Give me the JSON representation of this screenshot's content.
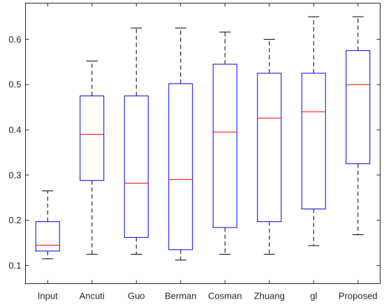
{
  "chart_data": {
    "type": "box",
    "title": "",
    "xlabel": "",
    "ylabel": "",
    "ylim": [
      0.06,
      0.68
    ],
    "yticks": [
      0.1,
      0.2,
      0.3,
      0.4,
      0.5,
      0.6
    ],
    "ytick_labels": [
      "0.1",
      "0.2",
      "0.3",
      "0.4",
      "0.5",
      "0.6"
    ],
    "grid": false,
    "categories": [
      "Input",
      "Ancuti",
      "Guo",
      "Berman",
      "Cosman",
      "Zhuang",
      "gl",
      "Proposed"
    ],
    "boxes": [
      {
        "min": 0.115,
        "q1": 0.132,
        "median": 0.145,
        "q3": 0.197,
        "max": 0.265
      },
      {
        "min": 0.125,
        "q1": 0.288,
        "median": 0.39,
        "q3": 0.475,
        "max": 0.552
      },
      {
        "min": 0.125,
        "q1": 0.162,
        "median": 0.282,
        "q3": 0.475,
        "max": 0.625
      },
      {
        "min": 0.112,
        "q1": 0.135,
        "median": 0.29,
        "q3": 0.502,
        "max": 0.625
      },
      {
        "min": 0.125,
        "q1": 0.184,
        "median": 0.395,
        "q3": 0.545,
        "max": 0.616
      },
      {
        "min": 0.125,
        "q1": 0.197,
        "median": 0.426,
        "q3": 0.525,
        "max": 0.6
      },
      {
        "min": 0.144,
        "q1": 0.225,
        "median": 0.44,
        "q3": 0.525,
        "max": 0.65
      },
      {
        "min": 0.168,
        "q1": 0.325,
        "median": 0.5,
        "q3": 0.575,
        "max": 0.65
      }
    ],
    "colors": {
      "box": "#0000ff",
      "median": "#ff0000",
      "whisker": "#000000",
      "axis": "#262626"
    }
  }
}
